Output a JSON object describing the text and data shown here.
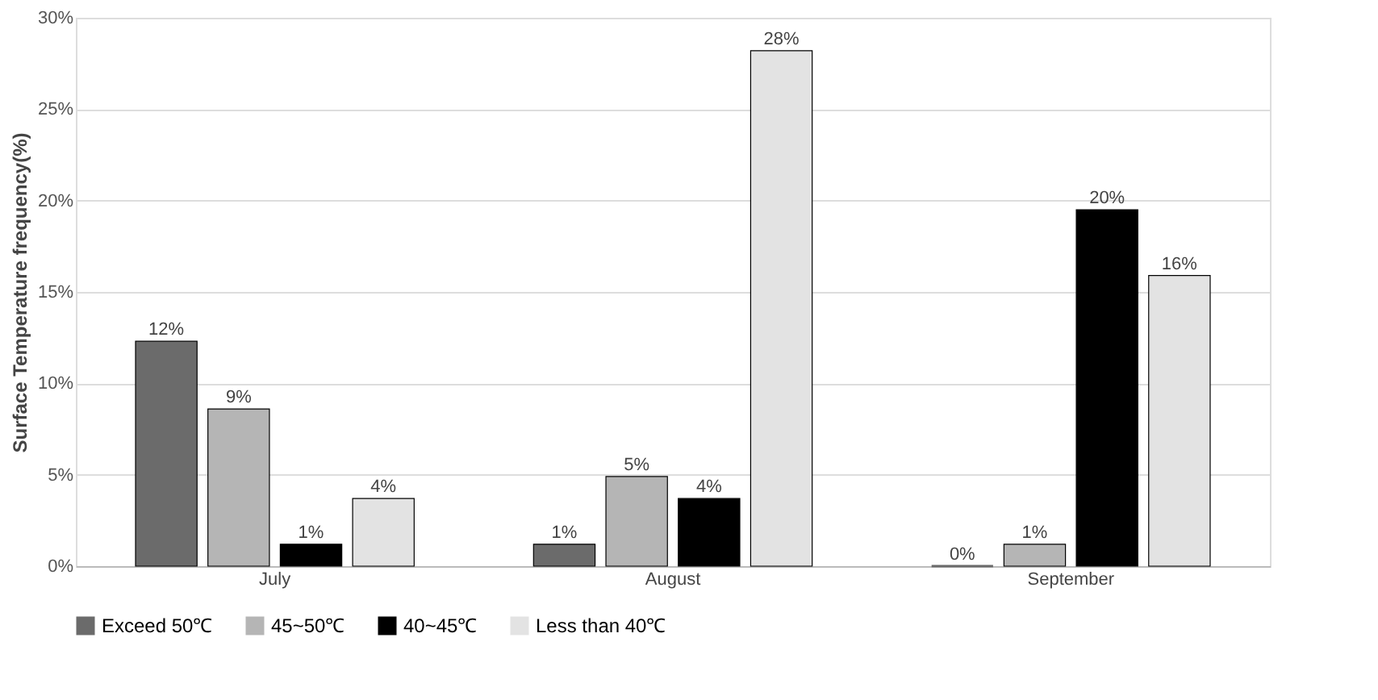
{
  "chart_data": {
    "type": "bar",
    "ylabel": "Surface Temperature frequency(%)",
    "categories": [
      "July",
      "August",
      "September"
    ],
    "series": [
      {
        "name": "Exceed 50℃",
        "color": "#6b6b6b",
        "values": [
          12.3,
          1.2,
          0
        ],
        "value_labels": [
          "12%",
          "1%",
          "0%"
        ]
      },
      {
        "name": "45~50℃",
        "color": "#b5b5b5",
        "values": [
          8.6,
          4.9,
          1.2
        ],
        "value_labels": [
          "9%",
          "5%",
          "1%"
        ]
      },
      {
        "name": "40~45℃",
        "color": "#000000",
        "values": [
          1.2,
          3.7,
          19.5
        ],
        "value_labels": [
          "1%",
          "4%",
          "20%"
        ]
      },
      {
        "name": "Less than 40℃",
        "color": "#e3e3e3",
        "values": [
          3.7,
          28.2,
          15.9
        ],
        "value_labels": [
          "4%",
          "28%",
          "16%"
        ]
      }
    ],
    "ylim": [
      0,
      30
    ],
    "yticks": [
      {
        "value": 0,
        "label": "0%"
      },
      {
        "value": 5,
        "label": "5%"
      },
      {
        "value": 10,
        "label": "10%"
      },
      {
        "value": 15,
        "label": "15%"
      },
      {
        "value": 20,
        "label": "20%"
      },
      {
        "value": 25,
        "label": "25%"
      },
      {
        "value": 30,
        "label": "30%"
      }
    ],
    "grid": "y",
    "legend": "bottom"
  }
}
